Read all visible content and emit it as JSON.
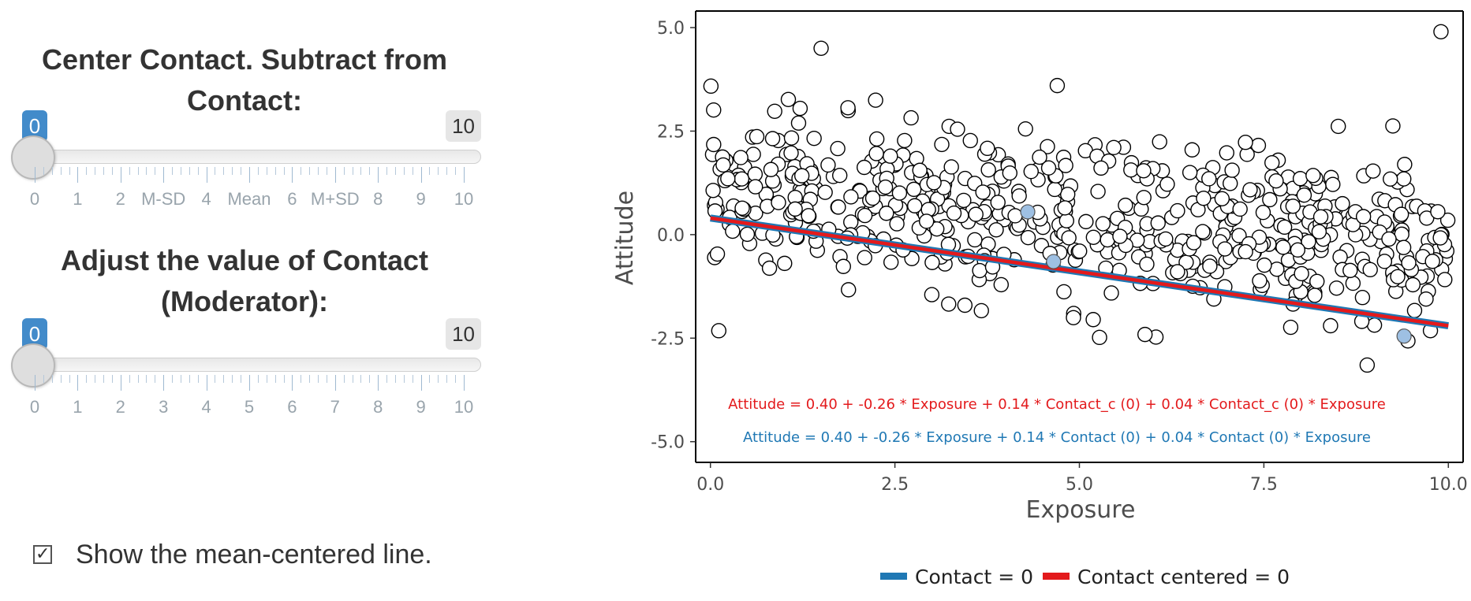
{
  "sidebar": {
    "center_slider": {
      "label_line1": "Center Contact. Subtract from",
      "label_line2": "Contact:",
      "value": "0",
      "max": "10",
      "tick_labels": [
        "0",
        "1",
        "2",
        "M-SD",
        "4",
        "Mean",
        "6",
        "M+SD",
        "8",
        "9",
        "10"
      ]
    },
    "moderator_slider": {
      "label_line1": "Adjust the value of Contact",
      "label_line2": "(Moderator):",
      "value": "0",
      "max": "10",
      "tick_labels": [
        "0",
        "1",
        "2",
        "3",
        "4",
        "5",
        "6",
        "7",
        "8",
        "9",
        "10"
      ]
    },
    "checkbox": {
      "label": "Show the mean-centered line.",
      "checked": true
    }
  },
  "chart_data": {
    "type": "scatter",
    "xlabel": "Exposure",
    "ylabel": "Attitude",
    "xlim": [
      -0.2,
      10.2
    ],
    "ylim": [
      -5.5,
      5.4
    ],
    "xticks": [
      "0.0",
      "2.5",
      "5.0",
      "7.5",
      "10.0"
    ],
    "yticks": [
      "5.0",
      "2.5",
      "0.0",
      "-2.5",
      "-5.0"
    ],
    "xtick_values": [
      0,
      2.5,
      5,
      7.5,
      10
    ],
    "ytick_values": [
      5,
      2.5,
      0,
      -2.5,
      -5
    ],
    "point_count_approx": 600,
    "points_notable": [
      {
        "x": 9.9,
        "y": 4.9
      },
      {
        "x": 1.5,
        "y": 4.5
      },
      {
        "x": 8.9,
        "y": -3.15
      },
      {
        "x": 3.0,
        "y": -1.45
      },
      {
        "x": 4.7,
        "y": 3.6
      }
    ],
    "highlighted_points": [
      {
        "x": 4.3,
        "y": 0.55
      },
      {
        "x": 4.65,
        "y": -0.65
      },
      {
        "x": 9.4,
        "y": -2.45
      }
    ],
    "series": [
      {
        "name": "Contact = 0",
        "color": "#1f78b4",
        "intercept": 0.4,
        "slope": -0.26
      },
      {
        "name": "Contact centered = 0",
        "color": "#e31a1c",
        "intercept": 0.4,
        "slope": -0.26
      }
    ],
    "equation_red": "Attitude =  0.40  +  -0.26  * Exposure + 0.14 * Contact_c (0) + 0.04 * Contact_c (0) * Exposure",
    "equation_blue": "Attitude = 0.40 + -0.26 * Exposure + 0.14 * Contact (0) + 0.04 * Contact (0) * Exposure",
    "legend_position": "bottom",
    "grid": false
  }
}
